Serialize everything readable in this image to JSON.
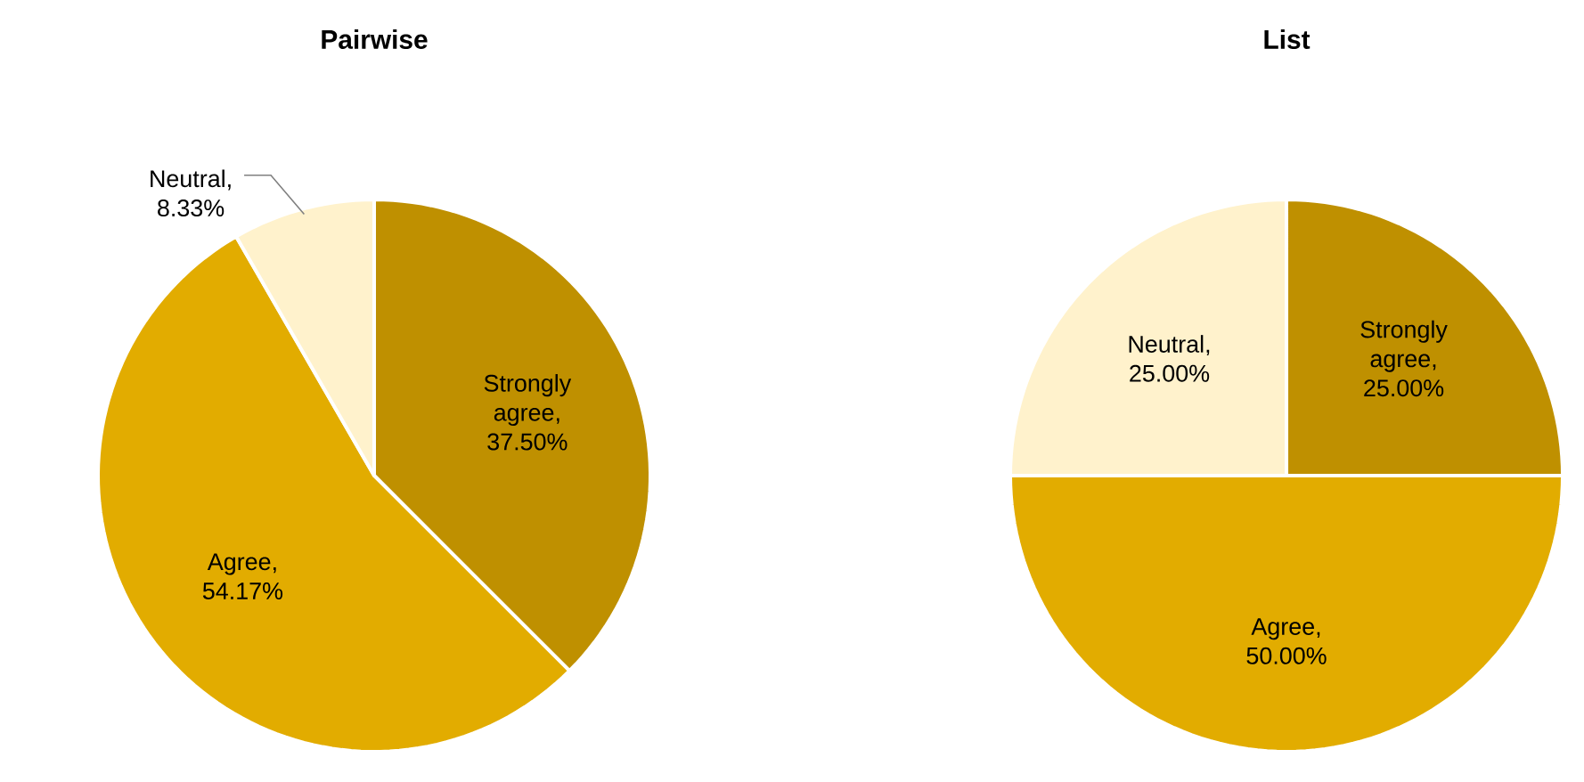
{
  "chart_data": [
    {
      "type": "pie",
      "title": "Pairwise",
      "categories": [
        "Strongly agree",
        "Agree",
        "Neutral"
      ],
      "values": [
        37.5,
        54.17,
        8.33
      ],
      "colors": [
        "#bf9000",
        "#e2ac00",
        "#fff2cc"
      ],
      "value_labels": [
        ", 37.50%",
        ", 54.17%",
        ", 8.33%"
      ]
    },
    {
      "type": "pie",
      "title": "List",
      "categories": [
        "Strongly agree",
        "Agree",
        "Neutral"
      ],
      "values": [
        25.0,
        50.0,
        25.0
      ],
      "colors": [
        "#bf9000",
        "#e2ac00",
        "#fff2cc"
      ],
      "value_labels": [
        ", 25.00%",
        ", 50.00%",
        ", 25.00%"
      ]
    }
  ]
}
